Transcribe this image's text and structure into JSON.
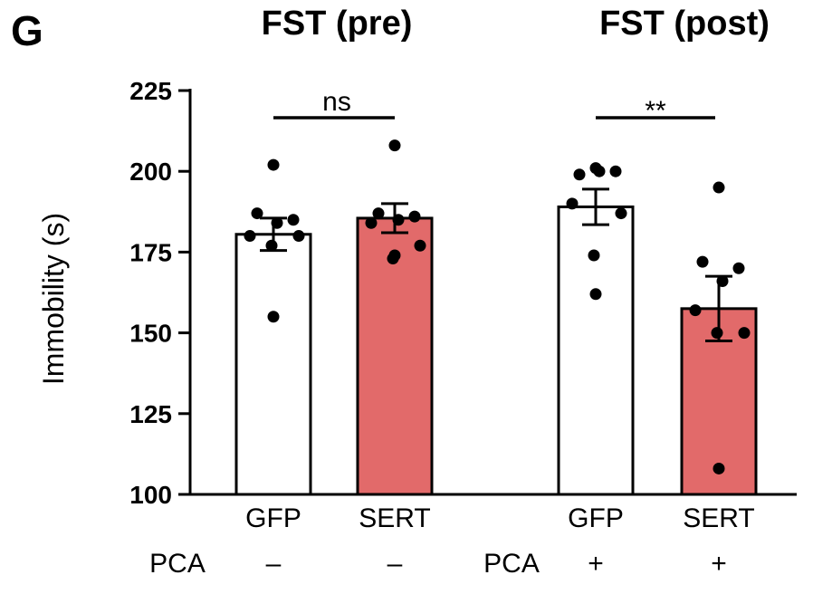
{
  "panel_letter": "G",
  "chart_data": {
    "type": "bar",
    "ylabel": "Immobility (s)",
    "ylim": [
      100,
      225
    ],
    "yticks": [
      "100",
      "125",
      "150",
      "175",
      "200",
      "225"
    ],
    "groups": [
      {
        "title": "FST (pre)",
        "significance": "ns"
      },
      {
        "title": "FST (post)",
        "significance": "**"
      }
    ],
    "categories": [
      "GFP",
      "SERT",
      "GFP",
      "SERT"
    ],
    "row_label": "PCA",
    "pca": [
      "–",
      "–",
      "+",
      "+"
    ],
    "colors": {
      "GFP": "#ffffff",
      "SERT": "#e26a6a"
    },
    "bars": [
      {
        "group": 0,
        "label": "GFP",
        "mean": 180.5,
        "sem": 5.0,
        "points": [
          202,
          187,
          185,
          184,
          180,
          180,
          177,
          155
        ]
      },
      {
        "group": 0,
        "label": "SERT",
        "mean": 185.5,
        "sem": 4.5,
        "points": [
          208,
          187,
          186,
          185,
          184,
          177,
          173,
          174
        ]
      },
      {
        "group": 1,
        "label": "GFP",
        "mean": 189,
        "sem": 5.5,
        "points": [
          201,
          199,
          200,
          200,
          190,
          187,
          174,
          162
        ]
      },
      {
        "group": 1,
        "label": "SERT",
        "mean": 157.5,
        "sem": 10.0,
        "points": [
          195,
          172,
          170,
          166,
          157,
          150,
          150,
          108
        ]
      }
    ]
  }
}
